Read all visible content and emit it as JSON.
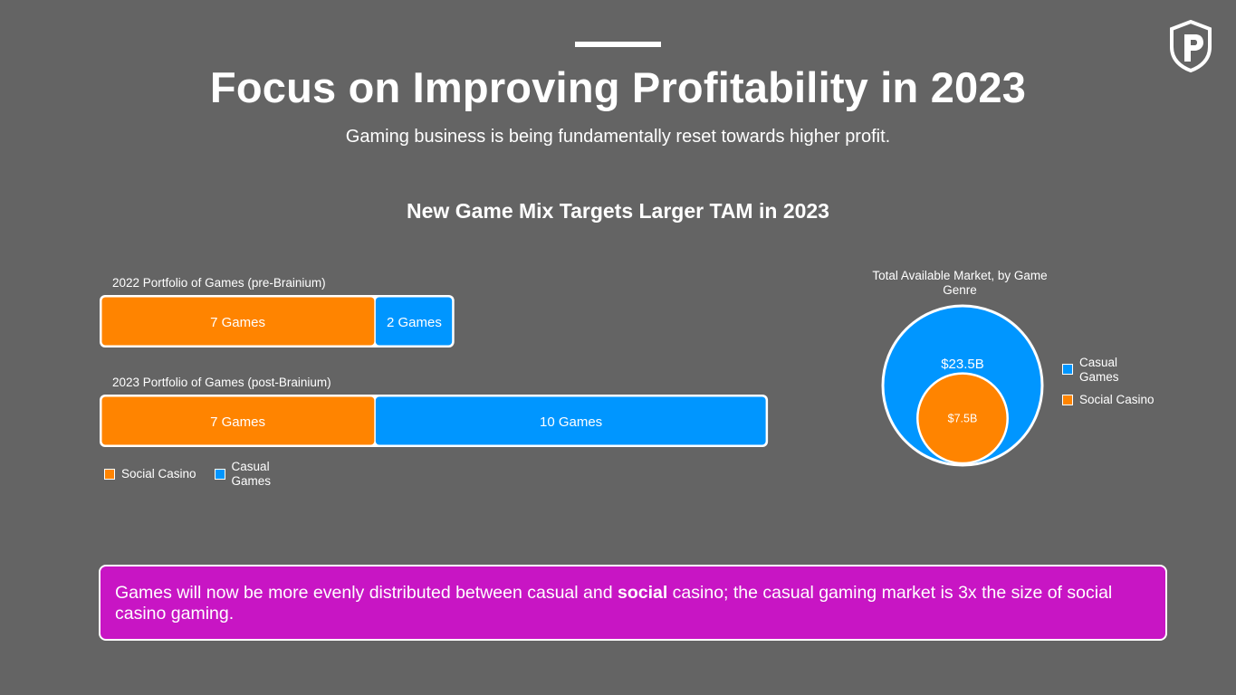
{
  "header": {
    "title": "Focus on Improving Profitability in 2023",
    "subtitle": "Gaming business is being fundamentally reset towards higher profit."
  },
  "colors": {
    "background": "#646464",
    "social_casino": "#ff8400",
    "casual_games": "#0096ff",
    "callout": "#c815c4"
  },
  "chart_data": [
    {
      "type": "bar",
      "orientation": "horizontal-stacked",
      "title": "New Game Mix Targets Larger TAM in 2023",
      "categories": [
        "2022 Portfolio of Games (pre-Brainium)",
        "2023 Portfolio of Games (post-Brainium)"
      ],
      "series": [
        {
          "name": "Social Casino",
          "color": "#ff8400",
          "values": [
            7,
            7
          ],
          "labels": [
            "7 Games",
            "7 Games"
          ]
        },
        {
          "name": "Casual Games",
          "color": "#0096ff",
          "values": [
            2,
            10
          ],
          "labels": [
            "2 Games",
            "10 Games"
          ]
        }
      ],
      "legend": [
        {
          "label": "Social Casino",
          "color": "#ff8400"
        },
        {
          "label": "Casual Games",
          "color": "#0096ff"
        }
      ],
      "legend_position": "bottom-left"
    },
    {
      "type": "nested-circles",
      "title": "Total Available Market, by Game Genre",
      "series": [
        {
          "name": "Casual Games",
          "value": 23.5,
          "label": "$23.5B",
          "color": "#0096ff"
        },
        {
          "name": "Social Casino",
          "value": 7.5,
          "label": "$7.5B",
          "color": "#ff8400"
        }
      ],
      "units": "USD billions",
      "legend": [
        {
          "label": "Casual Games",
          "color": "#0096ff"
        },
        {
          "label": "Social Casino",
          "color": "#ff8400"
        }
      ],
      "legend_position": "right"
    }
  ],
  "callout": {
    "text_before": "Games will now be more evenly distributed between casual and ",
    "bold": "social",
    "text_after": " casino; the casual gaming market is 3x the size of social casino gaming."
  }
}
